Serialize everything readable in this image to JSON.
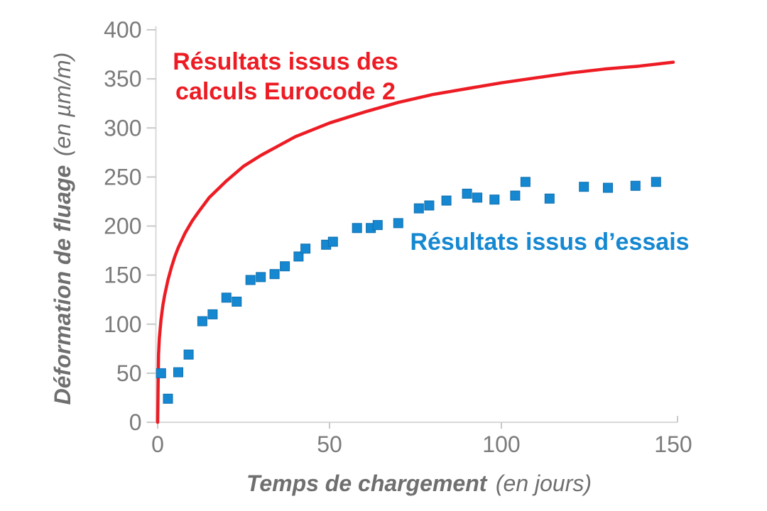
{
  "figure": {
    "background_color": "#ffffff",
    "axis_line_color": "#d9d9d9",
    "tick_color": "#c9c9c9",
    "tick_label_color": "#7b7b7b",
    "axis_title_color": "#6f6f6f"
  },
  "annotations": {
    "eurocode": {
      "line1": "Résultats issus des",
      "line2": "calculs Eurocode 2",
      "color": "#ED1C24"
    },
    "essais": {
      "text": "Résultats issus d’essais",
      "color": "#1588D1"
    }
  },
  "axes": {
    "x": {
      "title_bold": "Temps de chargement",
      "title_italic": "(en jours)",
      "ticks": [
        0,
        50,
        100,
        150
      ]
    },
    "y": {
      "title_bold": "Déformation de fluage",
      "title_italic": "(en µm/m)",
      "ticks": [
        0,
        50,
        100,
        150,
        200,
        250,
        300,
        350,
        400
      ]
    }
  },
  "chart_data": {
    "type": "scatter",
    "title": "",
    "xlabel": "Temps de chargement (en jours)",
    "ylabel": "Déformation de fluage (en µm/m)",
    "xlim": [
      0,
      150
    ],
    "ylim": [
      0,
      400
    ],
    "grid": false,
    "legend_position": "inline-annotations",
    "series": [
      {
        "name": "Résultats issus des calculs Eurocode 2",
        "type": "line",
        "color": "#ED1C24",
        "model": "y = 433·(t/(111+t))^0.3",
        "x": [
          0,
          0.25,
          0.5,
          1,
          1.5,
          2,
          3,
          4,
          5,
          6,
          8,
          10,
          12,
          15,
          20,
          25,
          30,
          40,
          50,
          60,
          70,
          80,
          90,
          100,
          110,
          120,
          130,
          140,
          150
        ],
        "y": [
          0,
          69,
          86,
          105,
          119,
          129,
          145,
          158,
          169,
          178,
          193,
          205,
          215,
          229,
          246,
          261,
          272,
          291,
          305,
          316,
          326,
          334,
          340,
          346,
          351,
          356,
          360,
          363,
          367
        ]
      },
      {
        "name": "Résultats issus d’essais",
        "type": "scatter",
        "marker": "square",
        "color": "#1588D1",
        "points": [
          [
            1,
            50
          ],
          [
            3,
            24
          ],
          [
            6,
            51
          ],
          [
            9,
            69
          ],
          [
            13,
            103
          ],
          [
            16,
            110
          ],
          [
            20,
            127
          ],
          [
            23,
            123
          ],
          [
            27,
            145
          ],
          [
            30,
            148
          ],
          [
            34,
            151
          ],
          [
            37,
            159
          ],
          [
            41,
            169
          ],
          [
            43,
            177
          ],
          [
            49,
            181
          ],
          [
            51,
            184
          ],
          [
            58,
            198
          ],
          [
            62,
            198
          ],
          [
            64,
            201
          ],
          [
            70,
            203
          ],
          [
            76,
            218
          ],
          [
            79,
            221
          ],
          [
            84,
            226
          ],
          [
            90,
            233
          ],
          [
            93,
            229
          ],
          [
            98,
            227
          ],
          [
            104,
            231
          ],
          [
            107,
            245
          ],
          [
            114,
            228
          ],
          [
            124,
            240
          ],
          [
            131,
            239
          ],
          [
            139,
            241
          ],
          [
            145,
            245
          ]
        ]
      }
    ]
  }
}
